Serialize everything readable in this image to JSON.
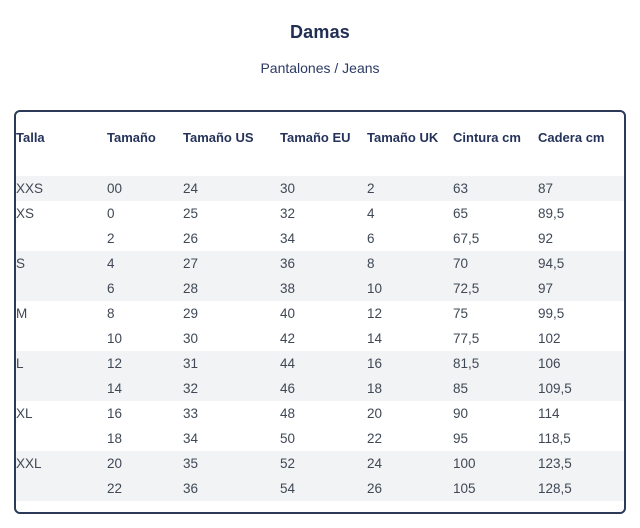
{
  "page": {
    "title": "Damas",
    "subtitle": "Pantalones / Jeans"
  },
  "table": {
    "columns": [
      "Talla",
      "Tamaño",
      "Tamaño US",
      "Tamaño EU",
      "Tamaño UK",
      "Cintura cm",
      "Cadera cm"
    ],
    "rows": [
      {
        "cells": [
          "XXS",
          "00",
          "24",
          "30",
          "2",
          "63",
          "87"
        ],
        "shaded": true
      },
      {
        "cells": [
          "XS",
          "0",
          "25",
          "32",
          "4",
          "65",
          "89,5"
        ],
        "shaded": false
      },
      {
        "cells": [
          "",
          "2",
          "26",
          "34",
          "6",
          "67,5",
          "92"
        ],
        "shaded": false
      },
      {
        "cells": [
          "S",
          "4",
          "27",
          "36",
          "8",
          "70",
          "94,5"
        ],
        "shaded": true
      },
      {
        "cells": [
          "",
          "6",
          "28",
          "38",
          "10",
          "72,5",
          "97"
        ],
        "shaded": true
      },
      {
        "cells": [
          "M",
          "8",
          "29",
          "40",
          "12",
          "75",
          "99,5"
        ],
        "shaded": false
      },
      {
        "cells": [
          "",
          "10",
          "30",
          "42",
          "14",
          "77,5",
          "102"
        ],
        "shaded": false
      },
      {
        "cells": [
          "L",
          "12",
          "31",
          "44",
          "16",
          "81,5",
          "106"
        ],
        "shaded": true
      },
      {
        "cells": [
          "",
          "14",
          "32",
          "46",
          "18",
          "85",
          "109,5"
        ],
        "shaded": true
      },
      {
        "cells": [
          "XL",
          "16",
          "33",
          "48",
          "20",
          "90",
          "114"
        ],
        "shaded": false
      },
      {
        "cells": [
          "",
          "18",
          "34",
          "50",
          "22",
          "95",
          "118,5"
        ],
        "shaded": false
      },
      {
        "cells": [
          "XXL",
          "20",
          "35",
          "52",
          "24",
          "100",
          "123,5"
        ],
        "shaded": true
      },
      {
        "cells": [
          "",
          "22",
          "36",
          "54",
          "26",
          "105",
          "128,5"
        ],
        "shaded": true
      }
    ]
  },
  "colors": {
    "title_navy": "#222f55",
    "header_navy": "#25335b",
    "border_navy": "#2c3a5a",
    "value_text": "#3f4855",
    "row_stripe": "#f2f3f5",
    "background": "#ffffff"
  }
}
